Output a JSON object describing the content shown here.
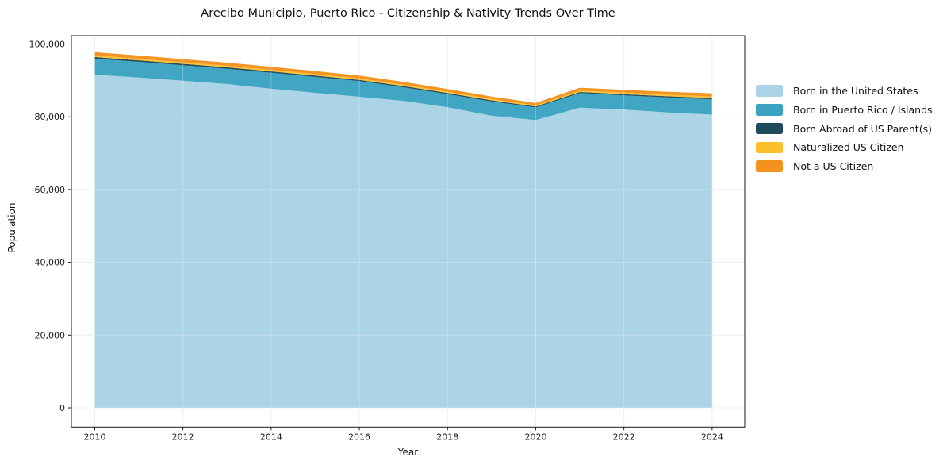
{
  "chart_data": {
    "type": "area",
    "stacked": true,
    "title": "Arecibo Municipio, Puerto Rico - Citizenship & Nativity Trends Over Time",
    "xlabel": "Year",
    "ylabel": "Population",
    "grid": true,
    "legend_position": "right",
    "x": [
      2010,
      2011,
      2012,
      2013,
      2014,
      2015,
      2016,
      2017,
      2018,
      2019,
      2020,
      2021,
      2022,
      2023,
      2024
    ],
    "x_ticks": [
      2010,
      2012,
      2014,
      2016,
      2018,
      2020,
      2022,
      2024
    ],
    "y_ticks": [
      {
        "value": 0,
        "label": "0"
      },
      {
        "value": 20000,
        "label": "20,000"
      },
      {
        "value": 40000,
        "label": "40,000"
      },
      {
        "value": 60000,
        "label": "60,000"
      },
      {
        "value": 80000,
        "label": "80,000"
      },
      {
        "value": 100000,
        "label": "100,000"
      }
    ],
    "xlim": [
      2009.47,
      2024.74
    ],
    "ylim": [
      -5300,
      102300
    ],
    "series": [
      {
        "name": "Born in the United States",
        "color": "#A9D3E6",
        "values": [
          91600,
          90800,
          89900,
          89000,
          87700,
          86600,
          85500,
          84400,
          82600,
          80300,
          79100,
          82500,
          82000,
          81200,
          80600
        ]
      },
      {
        "name": "Born in Puerto Rico / Islands",
        "color": "#3AA3C1",
        "values": [
          4400,
          4300,
          4250,
          4200,
          4400,
          4350,
          4300,
          3700,
          3600,
          3900,
          3460,
          4000,
          3900,
          4100,
          4200
        ]
      },
      {
        "name": "Born Abroad of US Parent(s)",
        "color": "#1F4A5C",
        "values": [
          440,
          420,
          400,
          400,
          380,
          380,
          350,
          350,
          330,
          320,
          280,
          320,
          330,
          340,
          350
        ]
      },
      {
        "name": "Naturalized US Citizen",
        "color": "#FCC02E",
        "values": [
          440,
          440,
          430,
          430,
          420,
          420,
          400,
          400,
          380,
          380,
          310,
          380,
          400,
          410,
          420
        ]
      },
      {
        "name": "Not a US Citizen",
        "color": "#F3921E",
        "values": [
          880,
          880,
          870,
          850,
          850,
          820,
          800,
          750,
          700,
          680,
          660,
          800,
          800,
          820,
          880
        ]
      }
    ]
  },
  "colors": {
    "background": "#FFFFFF",
    "grid": "#E9E9E9",
    "grid_overlay": "rgba(255,255,255,0.28)",
    "frame": "#1A1A1A",
    "tick_text": "#1A1A1A"
  }
}
